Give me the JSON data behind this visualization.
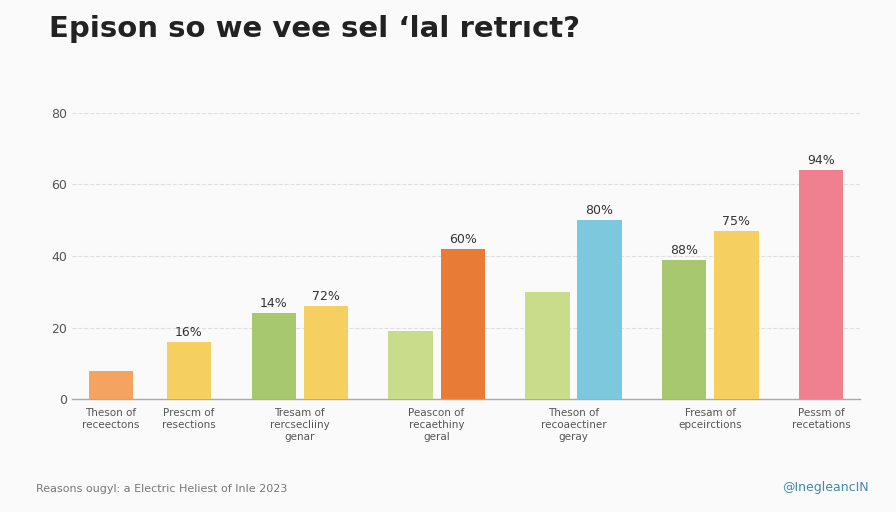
{
  "title": "Epison so we vee sel ‘lal retrıct?",
  "bars": [
    {
      "value": 8,
      "color": "#F4A460",
      "display": "",
      "group": 0
    },
    {
      "value": 16,
      "color": "#F5D060",
      "display": "16%",
      "group": 1
    },
    {
      "value": 24,
      "color": "#A8C870",
      "display": "14%",
      "group": 2
    },
    {
      "value": 26,
      "color": "#F5D060",
      "display": "72%",
      "group": 2
    },
    {
      "value": 19,
      "color": "#C8DC8C",
      "display": "",
      "group": 3
    },
    {
      "value": 42,
      "color": "#E87B35",
      "display": "60%",
      "group": 3
    },
    {
      "value": 30,
      "color": "#C8DC8C",
      "display": "",
      "group": 4
    },
    {
      "value": 50,
      "color": "#7DC8DC",
      "display": "80%",
      "group": 4
    },
    {
      "value": 39,
      "color": "#A8C870",
      "display": "88%",
      "group": 5
    },
    {
      "value": 47,
      "color": "#F5D060",
      "display": "75%",
      "group": 5
    },
    {
      "value": 64,
      "color": "#F08090",
      "display": "94%",
      "group": 6
    }
  ],
  "group_labels": [
    "Theson of\nreceectons",
    "Prescm of\nresections",
    "Tresam of\nrercsecliiny\ngenar",
    "Peascon of\nrecaethiny\ngeral",
    "Theson of\nrecoaectiner\ngeray",
    "Fresam of\nepceirctions",
    "Pessm of\nrecetations"
  ],
  "source": "Reasons ougyl: a Electric Heliest of Inle 2023",
  "watermark": "@InegleancIN",
  "ylim": [
    0,
    80
  ],
  "yticks": [
    0,
    20,
    40,
    60,
    80
  ],
  "background_color": "#FAFAFA",
  "grid_color": "#DDDDDD"
}
